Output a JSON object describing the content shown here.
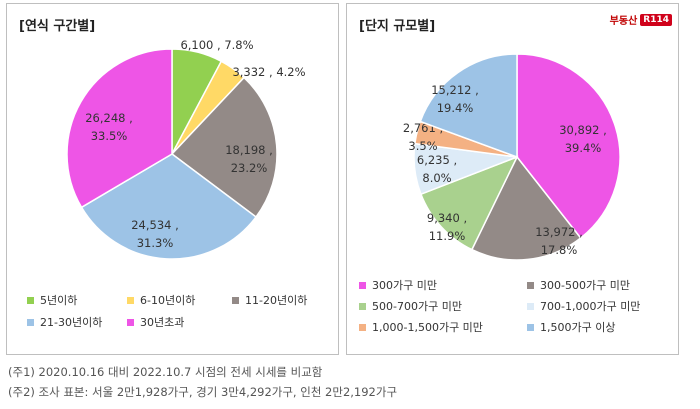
{
  "charts": [
    {
      "title": "[연식 구간별]",
      "show_logo": false,
      "chart_data": {
        "type": "pie",
        "title": "[연식 구간별]",
        "slices": [
          {
            "name": "5년이하",
            "value": 6100,
            "value_label": "6,100",
            "percent_label": "7.8%",
            "color": "#92d050"
          },
          {
            "name": "6-10년이하",
            "value": 3332,
            "value_label": "3,332",
            "percent_label": "4.2%",
            "color": "#ffd966"
          },
          {
            "name": "11-20년이하",
            "value": 18198,
            "value_label": "18,198",
            "percent_label": "23.2%",
            "color": "#938a87"
          },
          {
            "name": "21-30년이하",
            "value": 24534,
            "value_label": "24,534",
            "percent_label": "31.3%",
            "color": "#9dc3e6"
          },
          {
            "name": "30년초과",
            "value": 26248,
            "value_label": "26,248",
            "percent_label": "33.5%",
            "color": "#ee55e6"
          }
        ],
        "legend_position": "bottom"
      }
    },
    {
      "title": "[단지 규모별]",
      "show_logo": true,
      "chart_data": {
        "type": "pie",
        "title": "[단지 규모별]",
        "slices": [
          {
            "name": "300가구 미만",
            "value": 30892,
            "value_label": "30,892",
            "percent_label": "39.4%",
            "color": "#ee55e6"
          },
          {
            "name": "300-500가구 미만",
            "value": 13972,
            "value_label": "13,972",
            "percent_label": "17.8%",
            "color": "#938a87"
          },
          {
            "name": "500-700가구 미만",
            "value": 9340,
            "value_label": "9,340",
            "percent_label": "11.9%",
            "color": "#a9d18e"
          },
          {
            "name": "700-1,000가구 미만",
            "value": 6235,
            "value_label": "6,235",
            "percent_label": "8.0%",
            "color": "#ddebf7"
          },
          {
            "name": "1,000-1,500가구 미만",
            "value": 2761,
            "value_label": "2,761",
            "percent_label": "3.5%",
            "color": "#f4b183"
          },
          {
            "name": "1,500가구 이상",
            "value": 15212,
            "value_label": "15,212",
            "percent_label": "19.4%",
            "color": "#9dc3e6"
          }
        ],
        "legend_position": "bottom"
      }
    }
  ],
  "logo": {
    "text": "부동산",
    "badge": "R114"
  },
  "notes": [
    "(주1) 2020.10.16 대비 2022.10.7 시점의 전세 시세를 비교함",
    "(주2) 조사 표본: 서울 2만1,928가구, 경기 3만4,292가구, 인천 2만2,192가구"
  ]
}
